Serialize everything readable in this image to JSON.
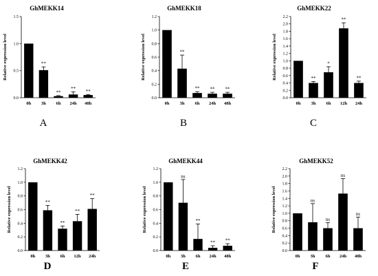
{
  "chart_data": [
    {
      "type": "bar",
      "title": "GhMEKK14",
      "panel_label": "A",
      "ylabel": "Relative expression level",
      "categories": [
        "0h",
        "3h",
        "6h",
        "24h",
        "48h"
      ],
      "values": [
        1.0,
        0.51,
        0.03,
        0.06,
        0.05
      ],
      "errors": [
        0,
        0.06,
        0.01,
        0.05,
        0.01
      ],
      "significance": [
        "",
        "**",
        "**",
        "**",
        "**"
      ],
      "ylim": [
        0,
        1.5
      ],
      "yticks": [
        "0.0",
        "0.5",
        "1.0",
        "1.5"
      ]
    },
    {
      "type": "bar",
      "title": "GhMEKK18",
      "panel_label": "B",
      "ylabel": "Relative expression level",
      "categories": [
        "0h",
        "3h",
        "6h",
        "24h",
        "48h"
      ],
      "values": [
        1.0,
        0.43,
        0.07,
        0.06,
        0.06
      ],
      "errors": [
        0,
        0.2,
        0.02,
        0.02,
        0.02
      ],
      "significance": [
        "",
        "**",
        "**",
        "**",
        "**"
      ],
      "ylim": [
        0,
        1.2
      ],
      "yticks": [
        "0.0",
        "0.2",
        "0.4",
        "0.6",
        "0.8",
        "1.0",
        "1.2"
      ]
    },
    {
      "type": "bar",
      "title": "GhMEKK22",
      "panel_label": "C",
      "ylabel": "Relative expression level",
      "categories": [
        "0h",
        "3h",
        "6h",
        "12h",
        "24h"
      ],
      "values": [
        1.0,
        0.4,
        0.69,
        1.88,
        0.4
      ],
      "errors": [
        0,
        0.04,
        0.15,
        0.15,
        0.05
      ],
      "significance": [
        "",
        "**",
        "*",
        "**",
        "**"
      ],
      "ylim": [
        0,
        2.2
      ],
      "yticks": [
        "0.0",
        "0.2",
        "0.4",
        "0.6",
        "0.8",
        "1.0",
        "1.2",
        "1.4",
        "1.6",
        "1.8",
        "2.0",
        "2.2"
      ]
    },
    {
      "type": "bar",
      "title": "GhMEKK42",
      "panel_label": "D",
      "ylabel": "Relative expression level",
      "categories": [
        "0h",
        "3h",
        "6h",
        "12h",
        "24h"
      ],
      "values": [
        1.0,
        0.59,
        0.32,
        0.43,
        0.61
      ],
      "errors": [
        0,
        0.07,
        0.04,
        0.1,
        0.15
      ],
      "significance": [
        "",
        "**",
        "**",
        "**",
        "**"
      ],
      "ylim": [
        0,
        1.2
      ],
      "yticks": [
        "0.0",
        "0.2",
        "0.4",
        "0.6",
        "0.8",
        "1.0",
        "1.2"
      ]
    },
    {
      "type": "bar",
      "title": "GhMEKK44",
      "panel_label": "E",
      "ylabel": "Relative expression level",
      "categories": [
        "0h",
        "3h",
        "6h",
        "24h",
        "48h"
      ],
      "values": [
        1.0,
        0.7,
        0.17,
        0.04,
        0.07
      ],
      "errors": [
        0,
        0.34,
        0.22,
        0.03,
        0.03
      ],
      "significance": [
        "",
        "ns",
        "**",
        "**",
        "**"
      ],
      "ylim": [
        0,
        1.2
      ],
      "yticks": [
        "0.0",
        "0.2",
        "0.4",
        "0.6",
        "0.8",
        "1.0",
        "1.2"
      ]
    },
    {
      "type": "bar",
      "title": "GhMEKK52",
      "panel_label": "F",
      "ylabel": "Relative expression level",
      "categories": [
        "0h",
        "3h",
        "6h",
        "24h",
        "48h"
      ],
      "values": [
        1.0,
        0.76,
        0.6,
        1.53,
        0.6
      ],
      "errors": [
        0,
        0.5,
        0.15,
        0.4,
        0.3
      ],
      "significance": [
        "",
        "ns",
        "ns",
        "ns",
        "ns"
      ],
      "ylim": [
        0,
        2.2
      ],
      "yticks": [
        "0.0",
        "0.2",
        "0.4",
        "0.6",
        "0.8",
        "1.0",
        "1.2",
        "1.4",
        "1.6",
        "1.8",
        "2.0",
        "2.2"
      ]
    }
  ]
}
